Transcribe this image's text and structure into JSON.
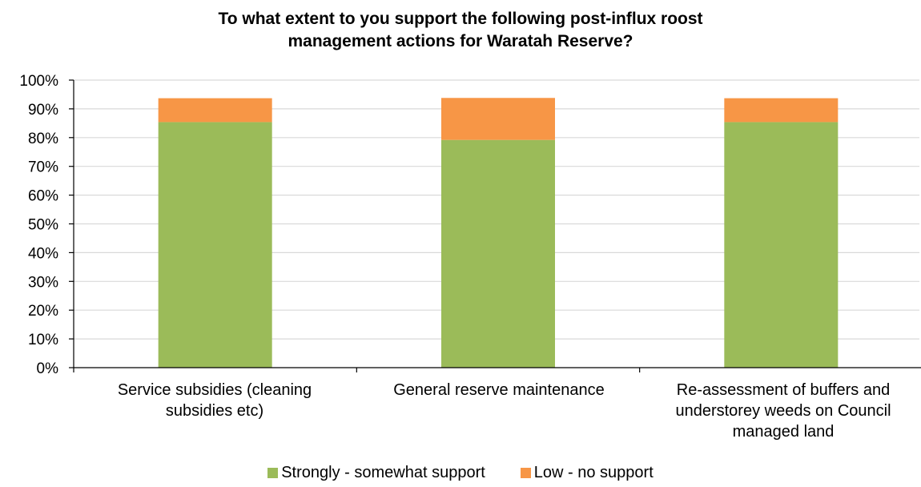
{
  "chart_data": {
    "type": "bar",
    "stacked": true,
    "title_lines": [
      "To what extent to you support the following post-influx roost",
      "management actions for Waratah Reserve?"
    ],
    "categories": [
      "Service subsidies (cleaning subsidies etc)",
      "General reserve maintenance",
      "Re-assessment of buffers and understorey weeds on Council managed land"
    ],
    "category_label_lines": [
      [
        "Service subsidies (cleaning",
        "subsidies etc)"
      ],
      [
        "General reserve maintenance"
      ],
      [
        "Re-assessment of buffers and",
        "understorey weeds on Council",
        "managed land"
      ]
    ],
    "series": [
      {
        "name": "Strongly - somewhat support",
        "color": "#9bbb59",
        "values": [
          85.4,
          79.2,
          85.4
        ]
      },
      {
        "name": "Low - no support",
        "color": "#f79646",
        "values": [
          8.3,
          14.6,
          8.3
        ]
      }
    ],
    "ylim": [
      0,
      100
    ],
    "yticks": [
      "0%",
      "10%",
      "20%",
      "30%",
      "40%",
      "50%",
      "60%",
      "70%",
      "80%",
      "90%",
      "100%"
    ],
    "ytick_values": [
      0,
      10,
      20,
      30,
      40,
      50,
      60,
      70,
      80,
      90,
      100
    ],
    "grid": true,
    "legend_position": "bottom"
  }
}
